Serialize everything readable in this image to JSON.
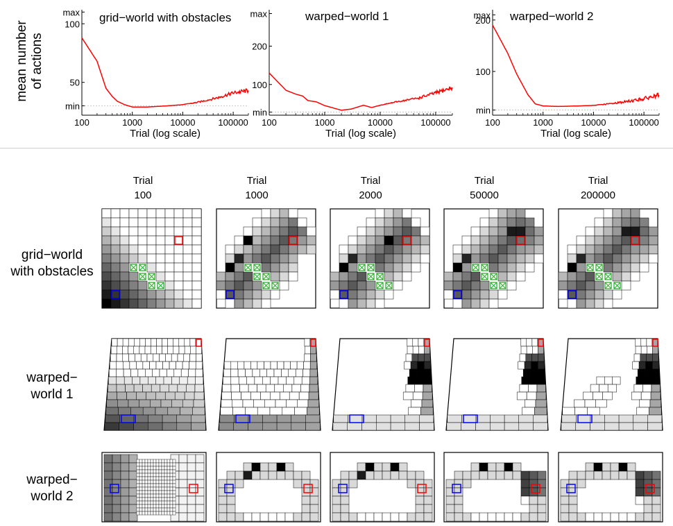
{
  "y_axis_title_line1": "mean number",
  "y_axis_title_line2": "of actions",
  "trial_header_word": "Trial",
  "row_labels": [
    {
      "line1": "grid−world",
      "line2": "with obstacles"
    },
    {
      "line1": "warped−",
      "line2": "world 1"
    },
    {
      "line1": "warped−",
      "line2": "world 2"
    }
  ],
  "colors": {
    "curve": "#ff0000",
    "start": "#0000ff",
    "goal": "#ff0000",
    "obstacle": "#22aa22",
    "separator": "#cfcfcf"
  },
  "chart_data": [
    {
      "type": "line",
      "title": "grid−world with obstacles",
      "xlabel": "Trial (log scale)",
      "ylabel": "mean number of actions",
      "xscale": "log",
      "xlim": [
        100,
        200000
      ],
      "xticks": [
        100,
        1000,
        10000,
        100000
      ],
      "xtick_labels": [
        "100",
        "1000",
        "10000",
        "100000"
      ],
      "ylim": [
        22,
        112
      ],
      "yticks": [
        {
          "value": 110,
          "label": "max"
        },
        {
          "value": 100,
          "label": "100"
        },
        {
          "value": 50,
          "label": "50"
        },
        {
          "value": 30,
          "label": "min"
        }
      ],
      "min_line": 30,
      "series": [
        {
          "name": "mean number of actions",
          "x": [
            100,
            200,
            300,
            400,
            500,
            700,
            1000,
            2000,
            5000,
            10000,
            20000,
            50000,
            100000,
            200000
          ],
          "y": [
            88,
            68,
            45,
            38,
            34,
            31,
            29,
            29,
            30,
            31,
            33,
            37,
            41,
            43
          ]
        }
      ]
    },
    {
      "type": "line",
      "title": "warped−world 1",
      "xlabel": "Trial (log scale)",
      "ylabel": "mean number of actions",
      "xscale": "log",
      "xlim": [
        100,
        200000
      ],
      "xticks": [
        100,
        1000,
        10000,
        100000
      ],
      "xtick_labels": [
        "100",
        "1000",
        "10000",
        "100000"
      ],
      "ylim": [
        20,
        295
      ],
      "yticks": [
        {
          "value": 285,
          "label": "max"
        },
        {
          "value": 200,
          "label": "200"
        },
        {
          "value": 100,
          "label": "100"
        },
        {
          "value": 28,
          "label": "min"
        }
      ],
      "min_line": 28,
      "series": [
        {
          "name": "mean number of actions",
          "x": [
            100,
            200,
            300,
            400,
            500,
            700,
            1000,
            2000,
            3000,
            5000,
            7000,
            10000,
            20000,
            50000,
            100000,
            200000
          ],
          "y": [
            130,
            85,
            75,
            70,
            58,
            55,
            45,
            33,
            36,
            46,
            40,
            46,
            55,
            65,
            78,
            92
          ]
        }
      ]
    },
    {
      "type": "line",
      "title": "warped−world 2",
      "xlabel": "Trial (log scale)",
      "ylabel": "mean number of actions",
      "xscale": "log",
      "xlim": [
        100,
        200000
      ],
      "xticks": [
        100,
        1000,
        10000,
        100000
      ],
      "xtick_labels": [
        "100",
        "1000",
        "10000",
        "100000"
      ],
      "ylim": [
        15,
        220
      ],
      "yticks": [
        {
          "value": 210,
          "label": "max"
        },
        {
          "value": 200,
          "label": "200"
        },
        {
          "value": 100,
          "label": "100"
        },
        {
          "value": 25,
          "label": "min"
        }
      ],
      "min_line": 25,
      "series": [
        {
          "name": "mean number of actions",
          "x": [
            100,
            200,
            300,
            500,
            700,
            1000,
            2000,
            5000,
            10000,
            20000,
            50000,
            100000,
            200000
          ],
          "y": [
            190,
            135,
            95,
            55,
            37,
            33,
            32,
            33,
            34,
            37,
            42,
            47,
            54
          ]
        }
      ]
    }
  ],
  "grids": {
    "trials": [
      "100",
      "1000",
      "2000",
      "50000",
      "200000"
    ]
  }
}
